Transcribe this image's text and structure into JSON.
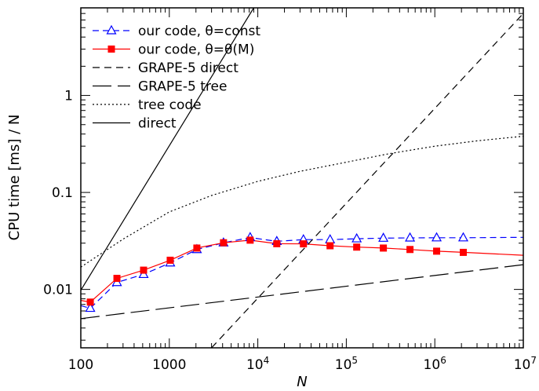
{
  "chart_data": {
    "type": "line",
    "title": "",
    "xlabel": "N",
    "ylabel": "CPU time [ms] / N",
    "xscale": "log",
    "yscale": "log",
    "xlim": [
      100,
      10000000
    ],
    "ylim": [
      0.0025,
      8
    ],
    "grid": false,
    "legend_position": "top-left",
    "xticks": [
      {
        "value": 100,
        "label": "100"
      },
      {
        "value": 1000,
        "label": "1000"
      },
      {
        "value": 10000,
        "base": "10",
        "exp": "4"
      },
      {
        "value": 100000,
        "base": "10",
        "exp": "5"
      },
      {
        "value": 1000000,
        "base": "10",
        "exp": "6"
      },
      {
        "value": 10000000,
        "base": "10",
        "exp": "7"
      }
    ],
    "yticks": [
      {
        "value": 0.01,
        "label": "0.01"
      },
      {
        "value": 0.1,
        "label": "0.1"
      },
      {
        "value": 1,
        "label": "1"
      }
    ],
    "series": [
      {
        "name": "our code, θ=const",
        "color": "#0000ff",
        "dash": "8,5",
        "marker": "triangle-open",
        "x": [
          100,
          128,
          256,
          512,
          1024,
          2048,
          4096,
          8192,
          16384,
          32768,
          65536,
          131072,
          262144,
          524288,
          1048576,
          2097152,
          10000000
        ],
        "y": [
          0.0068,
          0.0064,
          0.0118,
          0.0143,
          0.0188,
          0.0258,
          0.0302,
          0.0343,
          0.0313,
          0.0326,
          0.0326,
          0.0333,
          0.0338,
          0.034,
          0.0341,
          0.0341,
          0.0344
        ],
        "markers_from_index": 1,
        "markers_to_index": 15
      },
      {
        "name": "our code, θ=θ(M)",
        "color": "#ff0000",
        "dash": "",
        "marker": "square-filled",
        "x": [
          100,
          128,
          256,
          512,
          1024,
          2048,
          4096,
          8192,
          16384,
          32768,
          65536,
          131072,
          262144,
          524288,
          1048576,
          2097152,
          10000000
        ],
        "y": [
          0.0077,
          0.0074,
          0.013,
          0.0158,
          0.02,
          0.0267,
          0.0303,
          0.0322,
          0.0296,
          0.0295,
          0.0282,
          0.0273,
          0.0267,
          0.0258,
          0.0248,
          0.0241,
          0.0225
        ],
        "markers_from_index": 1,
        "markers_to_index": 15
      },
      {
        "name": "GRAPE-5 direct",
        "color": "#000000",
        "dash": "9,6",
        "marker": "none",
        "x": [
          3000,
          10000000
        ],
        "y": [
          0.0025,
          7
        ]
      },
      {
        "name": "GRAPE-5 tree",
        "color": "#000000",
        "dash": "24,8",
        "marker": "none",
        "x": [
          100,
          10000000
        ],
        "y": [
          0.005,
          0.018
        ]
      },
      {
        "name": "tree code",
        "color": "#000000",
        "dash": "2,3",
        "marker": "none",
        "x": [
          100,
          300,
          1000,
          3000,
          10000,
          30000,
          100000,
          300000,
          1000000,
          3000000,
          10000000
        ],
        "y": [
          0.017,
          0.033,
          0.063,
          0.093,
          0.13,
          0.165,
          0.205,
          0.25,
          0.3,
          0.34,
          0.38
        ]
      },
      {
        "name": "direct",
        "color": "#000000",
        "dash": "",
        "marker": "none",
        "x": [
          100,
          9000
        ],
        "y": [
          0.0098,
          8
        ]
      }
    ]
  }
}
